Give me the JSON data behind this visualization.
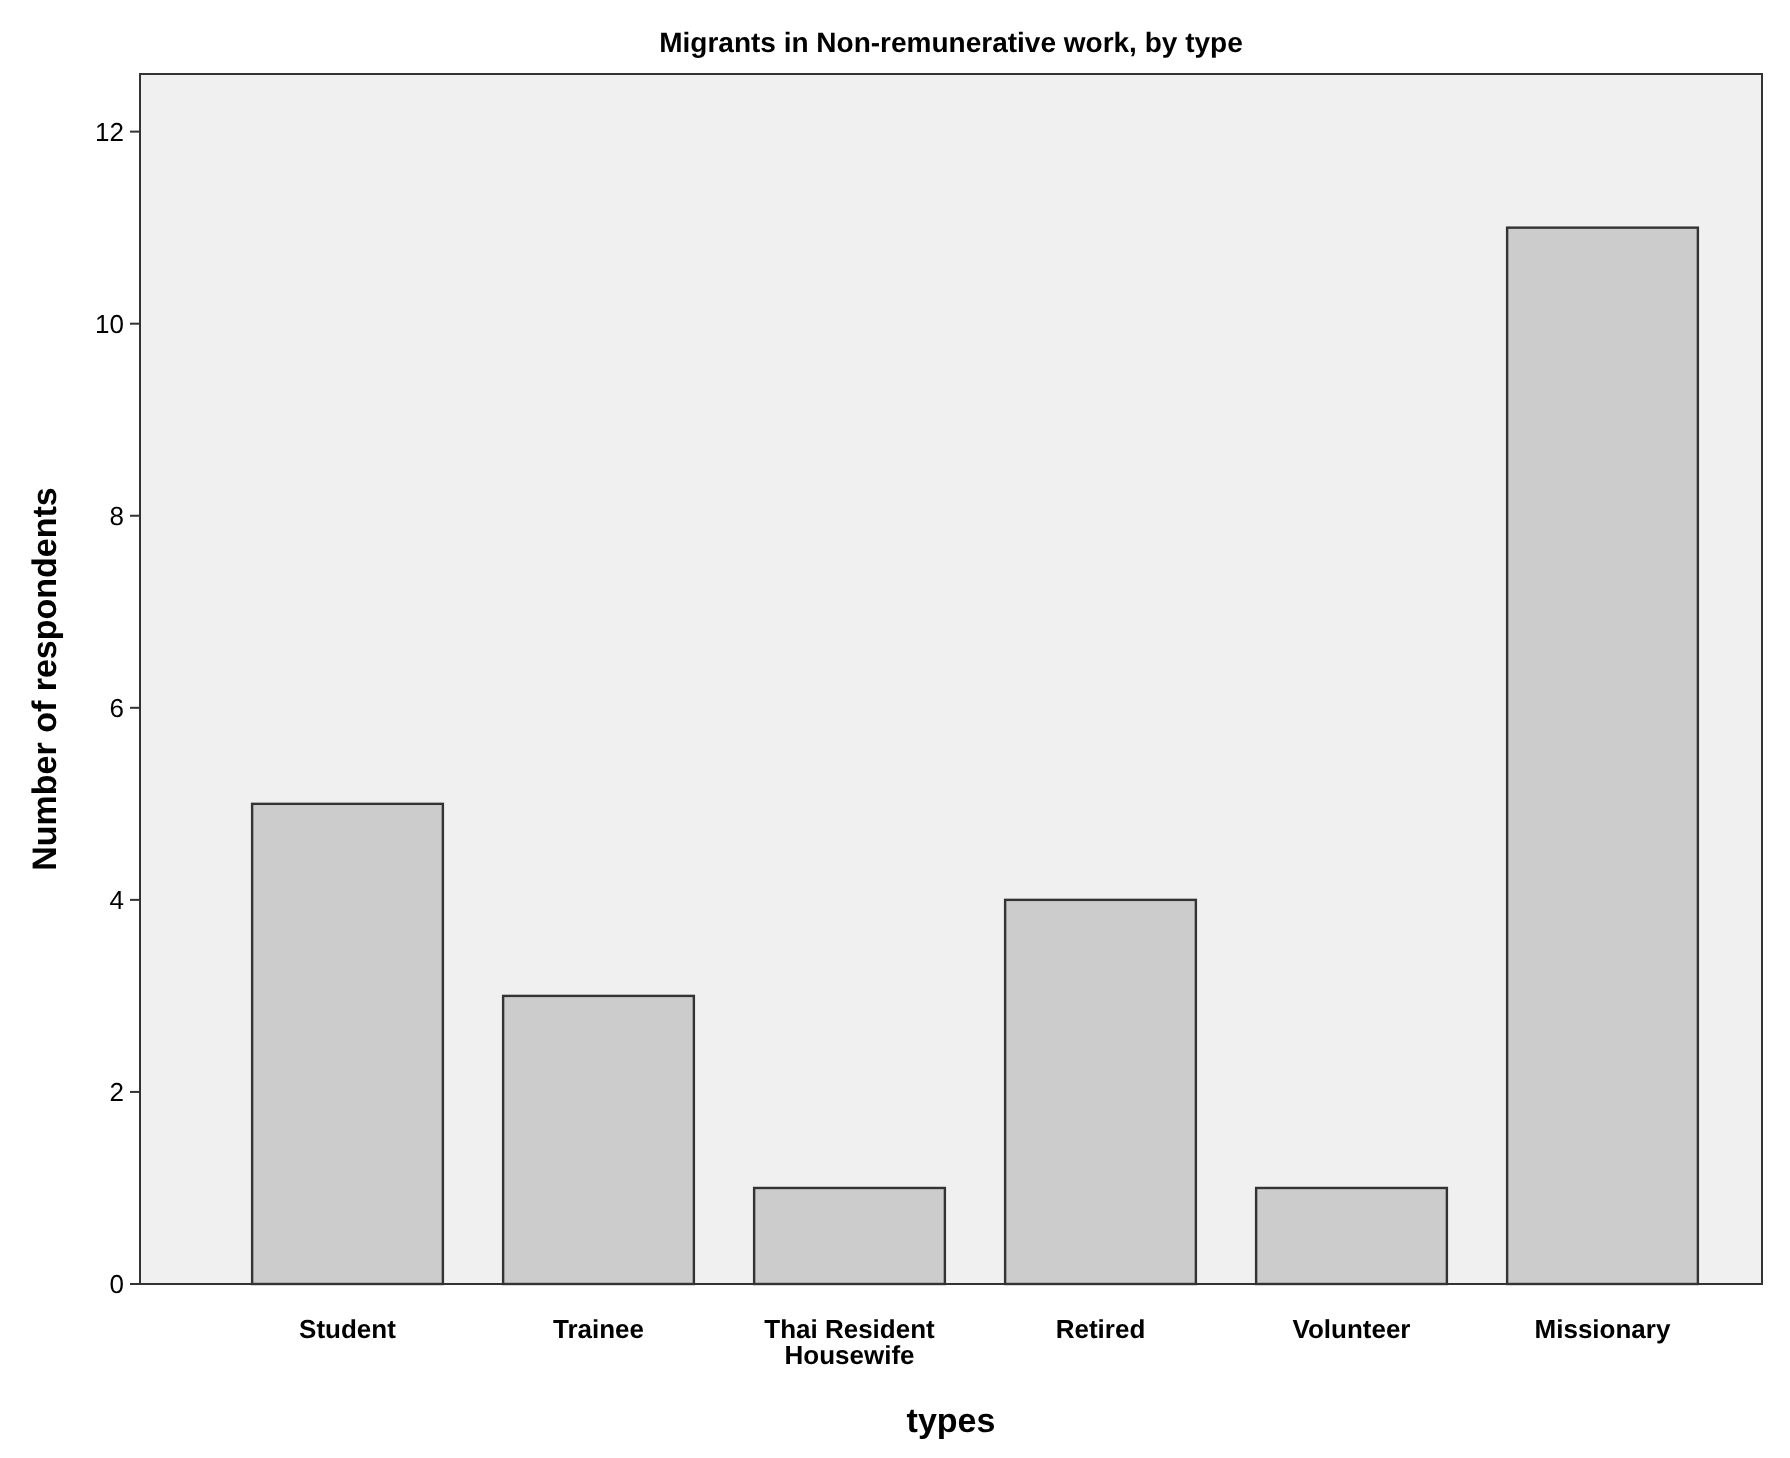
{
  "chart_data": {
    "type": "bar",
    "title": "Migrants in Non-remunerative work, by type",
    "xlabel": "types",
    "ylabel": "Number of respondents",
    "categories": [
      "Student",
      "Trainee",
      "Thai Resident Housewife",
      "Retired",
      "Volunteer",
      "Missionary"
    ],
    "values": [
      5,
      3,
      1,
      4,
      1,
      11
    ],
    "color": "#cccccc",
    "ylim": [
      0,
      12.6
    ],
    "yticks": [
      0,
      2,
      4,
      6,
      8,
      10,
      12
    ],
    "grid": false
  }
}
